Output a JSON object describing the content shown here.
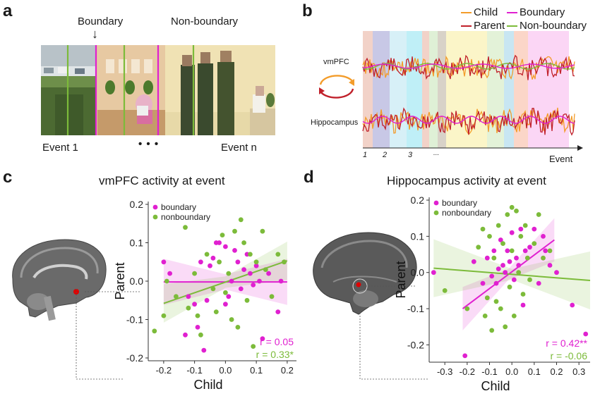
{
  "panels": {
    "a": {
      "letter": "a",
      "boundary_label": "Boundary",
      "nonboundary_label": "Non-boundary",
      "arrow_glyph": "↓",
      "event1_label": "Event 1",
      "ellipsis": "• • •",
      "eventn_label": "Event n"
    },
    "b": {
      "letter": "b",
      "legend": [
        {
          "name": "Child",
          "color": "#f39c2a"
        },
        {
          "name": "Boundary",
          "color": "#e020d0"
        },
        {
          "name": "Parent",
          "color": "#c0202a"
        },
        {
          "name": "Non-boundary",
          "color": "#7cbb3a"
        }
      ],
      "region_labels": {
        "vmpfc": "vmPFC",
        "hippocampus": "Hippocampus"
      },
      "event_ticks": [
        "1",
        "2",
        "3",
        "..."
      ],
      "x_axis_label": "Event"
    },
    "c": {
      "letter": "c"
    },
    "d": {
      "letter": "d"
    }
  },
  "chart_data": [
    {
      "id": "vmpfc",
      "type": "scatter",
      "title": "vmPFC activity at event",
      "xlabel": "Child",
      "ylabel": "Parent",
      "xlim": [
        -0.25,
        0.23
      ],
      "ylim": [
        -0.2,
        0.2
      ],
      "xticks": [
        -0.2,
        -0.1,
        0.0,
        0.1,
        0.2
      ],
      "xtick_labels": [
        "-0.2",
        "-0.1",
        "0.0",
        "0.1",
        "0.2"
      ],
      "yticks": [
        -0.2,
        -0.1,
        0.0,
        0.1,
        0.2
      ],
      "ytick_labels": [
        "-0.2",
        "-0.1",
        "0.0",
        "0.1",
        "0.2"
      ],
      "legend": [
        {
          "name": "boundary",
          "color": "#e020d0"
        },
        {
          "name": "nonboundary",
          "color": "#7cbb3a"
        }
      ],
      "series": [
        {
          "name": "boundary",
          "color": "#e020d0",
          "fit": {
            "x": [
              -0.2,
              0.2
            ],
            "y": [
              -0.002,
              -0.002
            ]
          },
          "ci_halfwidth_end": 0.06,
          "ci_halfwidth_mid": 0.02,
          "points": [
            [
              -0.2,
              0.05
            ],
            [
              -0.18,
              0.02
            ],
            [
              -0.12,
              -0.04
            ],
            [
              -0.1,
              -0.06
            ],
            [
              -0.09,
              -0.12
            ],
            [
              -0.08,
              0.05
            ],
            [
              -0.06,
              -0.05
            ],
            [
              -0.05,
              0.04
            ],
            [
              -0.04,
              0.06
            ],
            [
              -0.03,
              0.1
            ],
            [
              -0.02,
              0.1
            ],
            [
              0.0,
              0.09
            ],
            [
              0.0,
              -0.06
            ],
            [
              0.01,
              -0.04
            ],
            [
              0.02,
              0.0
            ],
            [
              0.03,
              0.08
            ],
            [
              0.04,
              0.05
            ],
            [
              0.05,
              -0.02
            ],
            [
              0.06,
              0.03
            ],
            [
              0.07,
              0.07
            ],
            [
              0.08,
              0.02
            ],
            [
              0.09,
              -0.01
            ],
            [
              0.1,
              0.04
            ],
            [
              0.11,
              0.0
            ],
            [
              0.12,
              -0.15
            ],
            [
              0.14,
              0.02
            ],
            [
              0.17,
              -0.08
            ],
            [
              -0.13,
              -0.14
            ],
            [
              -0.07,
              -0.18
            ],
            [
              0.18,
              0.0
            ]
          ]
        },
        {
          "name": "nonboundary",
          "color": "#7cbb3a",
          "fit": {
            "x": [
              -0.2,
              0.2
            ],
            "y": [
              -0.058,
              0.053
            ]
          },
          "ci_halfwidth_end": 0.05,
          "ci_halfwidth_mid": 0.015,
          "points": [
            [
              -0.23,
              -0.13
            ],
            [
              -0.2,
              -0.09
            ],
            [
              -0.19,
              0.0
            ],
            [
              -0.16,
              -0.04
            ],
            [
              -0.13,
              0.14
            ],
            [
              -0.12,
              -0.07
            ],
            [
              -0.1,
              0.02
            ],
            [
              -0.09,
              -0.09
            ],
            [
              -0.08,
              -0.14
            ],
            [
              -0.06,
              0.07
            ],
            [
              -0.04,
              -0.02
            ],
            [
              -0.03,
              -0.08
            ],
            [
              -0.02,
              0.05
            ],
            [
              -0.01,
              0.12
            ],
            [
              0.0,
              -0.03
            ],
            [
              0.01,
              0.02
            ],
            [
              0.02,
              -0.1
            ],
            [
              0.03,
              0.13
            ],
            [
              0.04,
              -0.12
            ],
            [
              0.05,
              0.16
            ],
            [
              0.06,
              0.1
            ],
            [
              0.07,
              -0.05
            ],
            [
              0.08,
              0.07
            ],
            [
              0.09,
              -0.17
            ],
            [
              0.1,
              0.05
            ],
            [
              0.12,
              0.13
            ],
            [
              0.13,
              0.03
            ],
            [
              0.15,
              -0.04
            ],
            [
              0.17,
              0.07
            ],
            [
              0.19,
              0.05
            ]
          ]
        }
      ],
      "annotations": [
        {
          "text": "r = 0.05",
          "color": "#e020d0"
        },
        {
          "text": "r = 0.33*",
          "color": "#7cbb3a"
        }
      ]
    },
    {
      "id": "hippocampus",
      "type": "scatter",
      "title": "Hippocampus activity at event",
      "xlabel": "Child",
      "ylabel": "Parent",
      "xlim": [
        -0.37,
        0.35
      ],
      "ylim": [
        -0.24,
        0.2
      ],
      "xticks": [
        -0.3,
        -0.2,
        -0.1,
        0.0,
        0.1,
        0.2,
        0.3
      ],
      "xtick_labels": [
        "-0.3",
        "-0.2",
        "-0.1",
        "0.0",
        "0.1",
        "0.2",
        "0.3"
      ],
      "yticks": [
        -0.2,
        -0.1,
        0.0,
        0.1,
        0.2
      ],
      "ytick_labels": [
        "-0.2",
        "-0.1",
        "0.0",
        "0.1",
        "0.2"
      ],
      "legend": [
        {
          "name": "boundary",
          "color": "#e020d0"
        },
        {
          "name": "nonboundary",
          "color": "#7cbb3a"
        }
      ],
      "series": [
        {
          "name": "boundary",
          "color": "#e020d0",
          "fit": {
            "x": [
              -0.22,
              0.19
            ],
            "y": [
              -0.1,
              0.09
            ]
          },
          "ci_halfwidth_end": 0.06,
          "ci_halfwidth_mid": 0.015,
          "points": [
            [
              -0.35,
              0.0
            ],
            [
              -0.21,
              -0.23
            ],
            [
              -0.17,
              0.03
            ],
            [
              -0.13,
              -0.03
            ],
            [
              -0.11,
              0.04
            ],
            [
              -0.09,
              -0.01
            ],
            [
              -0.08,
              0.06
            ],
            [
              -0.07,
              -0.03
            ],
            [
              -0.06,
              0.01
            ],
            [
              -0.05,
              0.09
            ],
            [
              -0.04,
              0.02
            ],
            [
              -0.03,
              0.0
            ],
            [
              -0.02,
              0.06
            ],
            [
              -0.01,
              0.03
            ],
            [
              0.0,
              0.11
            ],
            [
              0.01,
              -0.02
            ],
            [
              0.02,
              0.04
            ],
            [
              0.03,
              0.02
            ],
            [
              0.04,
              0.12
            ],
            [
              0.05,
              -0.09
            ],
            [
              0.06,
              0.06
            ],
            [
              0.08,
              0.07
            ],
            [
              0.1,
              0.12
            ],
            [
              0.12,
              -0.03
            ],
            [
              0.15,
              0.06
            ],
            [
              0.17,
              0.02
            ],
            [
              0.2,
              0.0
            ],
            [
              0.27,
              -0.09
            ],
            [
              0.33,
              -0.17
            ],
            [
              0.14,
              0.1
            ]
          ]
        },
        {
          "name": "nonboundary",
          "color": "#7cbb3a",
          "fit": {
            "x": [
              -0.35,
              0.35
            ],
            "y": [
              0.012,
              -0.022
            ]
          },
          "ci_halfwidth_end": 0.08,
          "ci_halfwidth_mid": 0.015,
          "points": [
            [
              -0.3,
              -0.05
            ],
            [
              -0.2,
              -0.1
            ],
            [
              -0.15,
              0.07
            ],
            [
              -0.12,
              -0.12
            ],
            [
              -0.1,
              0.1
            ],
            [
              -0.09,
              -0.16
            ],
            [
              -0.08,
              0.04
            ],
            [
              -0.07,
              -0.08
            ],
            [
              -0.06,
              0.13
            ],
            [
              -0.05,
              -0.1
            ],
            [
              -0.04,
              0.08
            ],
            [
              -0.03,
              -0.15
            ],
            [
              -0.02,
              0.16
            ],
            [
              -0.01,
              -0.04
            ],
            [
              0.0,
              0.18
            ],
            [
              0.0,
              0.06
            ],
            [
              0.01,
              -0.12
            ],
            [
              0.02,
              0.17
            ],
            [
              0.03,
              0.0
            ],
            [
              0.04,
              0.1
            ],
            [
              0.05,
              -0.06
            ],
            [
              0.06,
              0.13
            ],
            [
              0.07,
              0.04
            ],
            [
              0.08,
              -0.02
            ],
            [
              0.1,
              0.08
            ],
            [
              0.12,
              0.16
            ],
            [
              0.14,
              0.04
            ],
            [
              0.17,
              0.06
            ],
            [
              -0.13,
              0.12
            ],
            [
              -0.11,
              -0.07
            ]
          ]
        }
      ],
      "annotations": [
        {
          "text": "r =  0.42**",
          "color": "#e020d0"
        },
        {
          "text": "r = -0.06",
          "color": "#7cbb3a"
        }
      ]
    }
  ]
}
